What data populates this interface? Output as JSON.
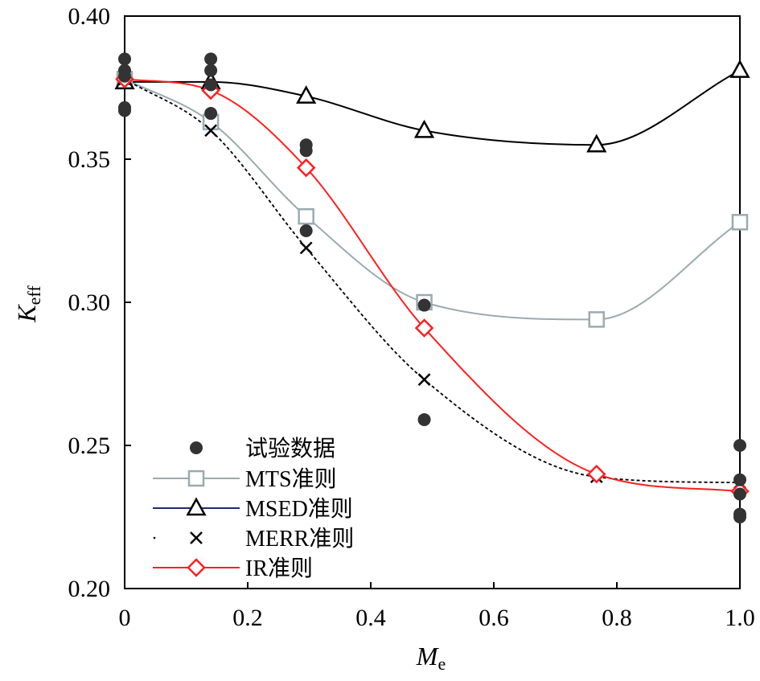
{
  "chart_data": {
    "type": "scatter",
    "xlabel": "M",
    "xlabel_sub": "e",
    "ylabel": "K",
    "ylabel_sub": "eff",
    "xlim": [
      0,
      1.0
    ],
    "ylim": [
      0.2,
      0.4
    ],
    "x_ticks": [
      0,
      0.2,
      0.4,
      0.6,
      0.8,
      1.0
    ],
    "x_tick_labels": [
      "0",
      "0.2",
      "0.4",
      "0.6",
      "0.8",
      "1.0"
    ],
    "y_ticks": [
      0.2,
      0.25,
      0.3,
      0.35,
      0.4
    ],
    "y_tick_labels": [
      "0.20",
      "0.25",
      "0.30",
      "0.35",
      "0.40"
    ],
    "grid": false,
    "legend_position": "bottom-left",
    "experimental": {
      "name": "试验数据",
      "color": "#333333",
      "points": [
        [
          0,
          0.385
        ],
        [
          0,
          0.381
        ],
        [
          0,
          0.379
        ],
        [
          0,
          0.368
        ],
        [
          0,
          0.367
        ],
        [
          0.14,
          0.385
        ],
        [
          0.14,
          0.381
        ],
        [
          0.14,
          0.376
        ],
        [
          0.14,
          0.366
        ],
        [
          0.295,
          0.355
        ],
        [
          0.295,
          0.353
        ],
        [
          0.295,
          0.325
        ],
        [
          0.487,
          0.299
        ],
        [
          0.487,
          0.259
        ],
        [
          1.0,
          0.25
        ],
        [
          1.0,
          0.238
        ],
        [
          1.0,
          0.233
        ],
        [
          1.0,
          0.226
        ],
        [
          1.0,
          0.225
        ]
      ]
    },
    "series": [
      {
        "name": "MTS准则",
        "color": "#9aabb0",
        "marker": "square",
        "dash": false,
        "x": [
          0,
          0.14,
          0.295,
          0.487,
          0.767,
          1.0
        ],
        "y": [
          0.378,
          0.363,
          0.33,
          0.3,
          0.294,
          0.328
        ]
      },
      {
        "name": "MSED准则",
        "color": "#000000",
        "legend_color": "#1f2a7a",
        "marker": "triangle",
        "dash": false,
        "x": [
          0,
          0.14,
          0.295,
          0.487,
          0.767,
          1.0
        ],
        "y": [
          0.377,
          0.377,
          0.372,
          0.36,
          0.355,
          0.381
        ]
      },
      {
        "name": "MERR准则",
        "color": "#000000",
        "marker": "x",
        "dash": true,
        "x": [
          0,
          0.14,
          0.295,
          0.487,
          0.767,
          1.0
        ],
        "y": [
          0.378,
          0.36,
          0.319,
          0.273,
          0.239,
          0.237
        ]
      },
      {
        "name": "IR准则",
        "color": "#ff2020",
        "marker": "diamond",
        "dash": false,
        "x": [
          0,
          0.14,
          0.295,
          0.487,
          0.767,
          1.0
        ],
        "y": [
          0.378,
          0.374,
          0.347,
          0.291,
          0.24,
          0.234
        ]
      }
    ]
  }
}
